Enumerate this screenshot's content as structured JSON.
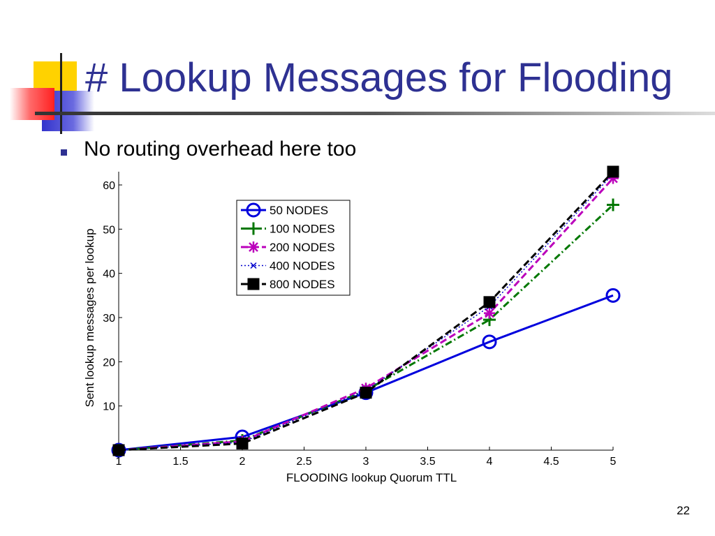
{
  "slide": {
    "title": "# Lookup Messages for Flooding",
    "bullet": "No routing overhead here too",
    "page_number": "22"
  },
  "colors": {
    "title": "#2e3192",
    "deco_yellow": "#ffd200",
    "deco_red": "#ff3030",
    "deco_blue": "#3333cc"
  },
  "chart_data": {
    "type": "line",
    "xlabel": "FLOODING lookup Quorum TTL",
    "ylabel": "Sent lookup messages per lookup",
    "xlim": [
      1,
      5
    ],
    "ylim": [
      0,
      63
    ],
    "xticks": [
      1,
      1.5,
      2,
      2.5,
      3,
      3.5,
      4,
      4.5,
      5
    ],
    "xtick_labels": [
      "1",
      "1.5",
      "2",
      "2.5",
      "3",
      "3.5",
      "4",
      "4.5",
      "5"
    ],
    "yticks": [
      10,
      20,
      30,
      40,
      50,
      60
    ],
    "ytick_labels": [
      "10",
      "20",
      "30",
      "40",
      "50",
      "60"
    ],
    "grid": false,
    "legend_position": "top-center",
    "x": [
      1,
      2,
      3,
      4,
      5
    ],
    "series": [
      {
        "name": "50 NODES",
        "values": [
          0,
          3,
          13,
          24.5,
          35
        ],
        "color": "#0000dd",
        "line": "solid",
        "marker": "circle"
      },
      {
        "name": "100 NODES",
        "values": [
          0,
          2.2,
          13.5,
          29.5,
          55.5
        ],
        "color": "#007700",
        "line": "dashdot",
        "marker": "plus"
      },
      {
        "name": "200 NODES",
        "values": [
          0,
          2,
          14,
          31,
          61.5
        ],
        "color": "#bb00bb",
        "line": "dashed",
        "marker": "asterisk"
      },
      {
        "name": "400 NODES",
        "values": [
          0,
          1.8,
          13.5,
          32.5,
          62.5
        ],
        "color": "#0000cc",
        "line": "dotted",
        "marker": "x"
      },
      {
        "name": "800 NODES",
        "values": [
          0,
          1.5,
          13,
          33.5,
          63
        ],
        "color": "#000000",
        "line": "dashed",
        "marker": "square"
      }
    ]
  }
}
